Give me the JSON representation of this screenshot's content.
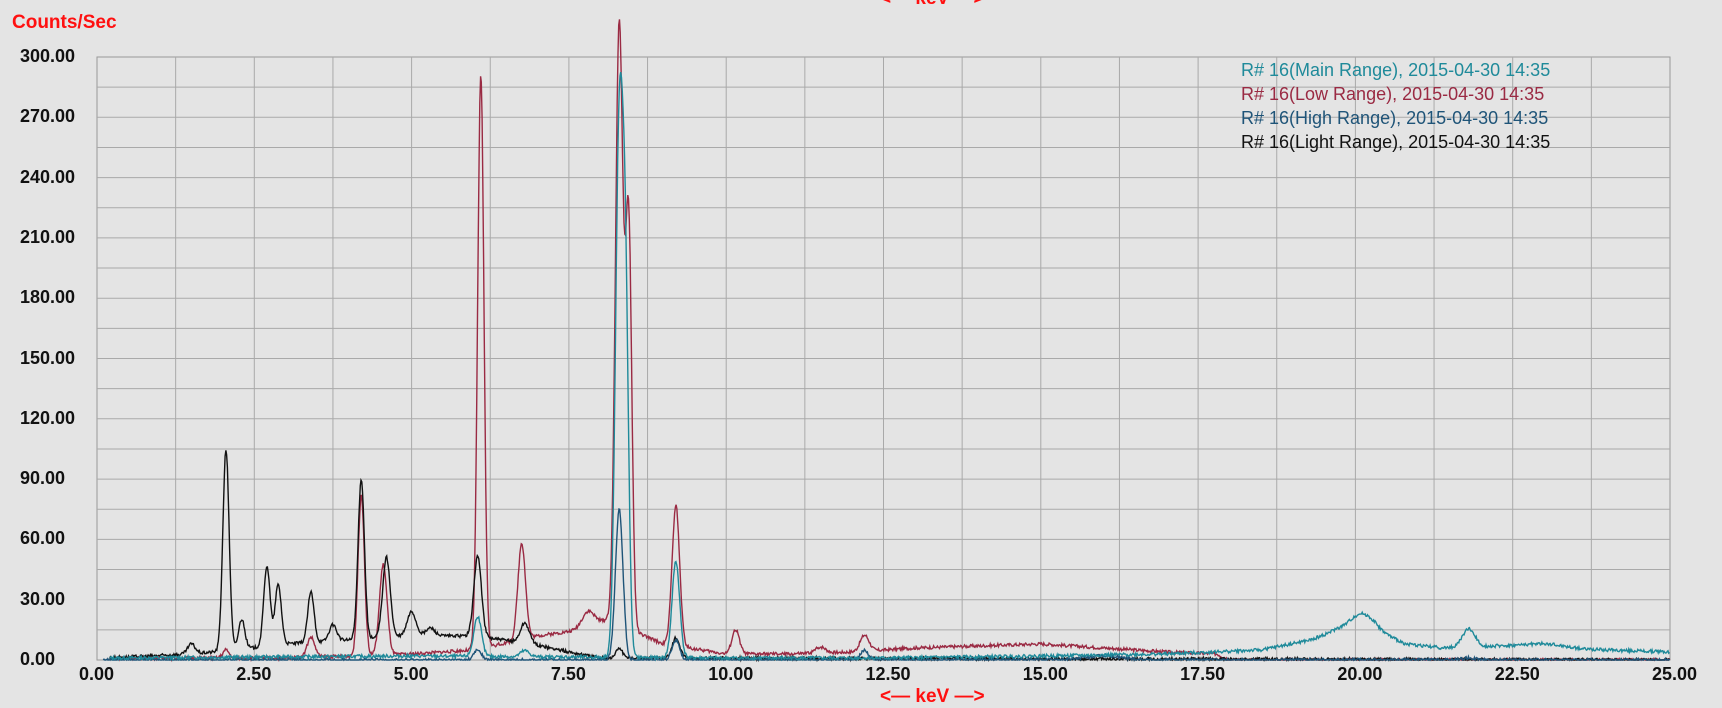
{
  "chart_data": {
    "type": "line",
    "title": "",
    "ylabel": "Counts/Sec",
    "xlabel": "<— keV —>",
    "xlim": [
      0,
      25
    ],
    "ylim": [
      0,
      300
    ],
    "x_ticks": [
      "0.00",
      "2.50",
      "5.00",
      "7.50",
      "10.00",
      "12.50",
      "15.00",
      "17.50",
      "20.00",
      "22.50",
      "25.00"
    ],
    "y_ticks": [
      "0.00",
      "30.00",
      "60.00",
      "90.00",
      "120.00",
      "150.00",
      "180.00",
      "210.00",
      "240.00",
      "270.00",
      "300.00"
    ],
    "grid": true,
    "legend_position": "top-right",
    "series": [
      {
        "name": "R# 16(Main Range), 2015-04-30 14:35",
        "color": "#1f8a9a",
        "baseline": [
          [
            0.2,
            1
          ],
          [
            5,
            2
          ],
          [
            10,
            1
          ],
          [
            12.5,
            1
          ],
          [
            15,
            2
          ],
          [
            17,
            3
          ],
          [
            18.5,
            5
          ],
          [
            19.3,
            10
          ],
          [
            19.7,
            15
          ],
          [
            20.3,
            15
          ],
          [
            20.8,
            8
          ],
          [
            21.4,
            6
          ],
          [
            22.3,
            7
          ],
          [
            23,
            6
          ],
          [
            25,
            4
          ]
        ],
        "peaks": [
          [
            6.05,
            20,
            0.06
          ],
          [
            6.8,
            3,
            0.07
          ],
          [
            8.3,
            260,
            0.06
          ],
          [
            8.4,
            160,
            0.05
          ],
          [
            9.2,
            48,
            0.06
          ],
          [
            20.1,
            8,
            0.18
          ],
          [
            21.8,
            9,
            0.1
          ],
          [
            23,
            2,
            0.3
          ]
        ]
      },
      {
        "name": "R# 16(Low Range), 2015-04-30 14:35",
        "color": "#9a2a43",
        "baseline": [
          [
            0.3,
            1
          ],
          [
            3,
            1
          ],
          [
            5,
            3
          ],
          [
            6,
            5
          ],
          [
            7,
            12
          ],
          [
            7.7,
            15
          ],
          [
            8.1,
            20
          ],
          [
            9,
            8
          ],
          [
            10,
            3
          ],
          [
            11,
            3
          ],
          [
            12,
            4
          ],
          [
            13,
            6
          ],
          [
            14,
            7
          ],
          [
            15,
            8
          ],
          [
            16,
            6
          ],
          [
            17,
            4
          ],
          [
            17.8,
            3
          ],
          [
            18,
            0
          ],
          [
            25,
            0
          ]
        ],
        "peaks": [
          [
            2.05,
            4,
            0.05
          ],
          [
            3.4,
            10,
            0.06
          ],
          [
            4.2,
            80,
            0.05
          ],
          [
            4.55,
            45,
            0.06
          ],
          [
            6.1,
            285,
            0.05
          ],
          [
            6.75,
            48,
            0.06
          ],
          [
            7.8,
            8,
            0.1
          ],
          [
            8.3,
            300,
            0.06
          ],
          [
            8.45,
            200,
            0.05
          ],
          [
            9.2,
            70,
            0.06
          ],
          [
            10.15,
            12,
            0.06
          ],
          [
            11.5,
            3,
            0.08
          ],
          [
            12.2,
            8,
            0.07
          ]
        ]
      },
      {
        "name": "R# 16(High Range), 2015-04-30 14:35",
        "color": "#1f5478",
        "baseline": [
          [
            0.1,
            0
          ],
          [
            25,
            0
          ]
        ],
        "peaks": [
          [
            6.05,
            5,
            0.06
          ],
          [
            8.3,
            75,
            0.06
          ],
          [
            9.2,
            10,
            0.06
          ],
          [
            12.2,
            5,
            0.06
          ],
          [
            16,
            2,
            0.3
          ],
          [
            21.8,
            1,
            0.1
          ]
        ]
      },
      {
        "name": "R# 16(Light Range), 2015-04-30 14:35",
        "color": "#111111",
        "baseline": [
          [
            0.2,
            1
          ],
          [
            1.5,
            3
          ],
          [
            2.2,
            5
          ],
          [
            3,
            8
          ],
          [
            4,
            10
          ],
          [
            5,
            12
          ],
          [
            6,
            12
          ],
          [
            6.9,
            8
          ],
          [
            7.5,
            4
          ],
          [
            8,
            1
          ],
          [
            25,
            0
          ]
        ],
        "peaks": [
          [
            1.5,
            5,
            0.06
          ],
          [
            2.05,
            100,
            0.05
          ],
          [
            2.3,
            15,
            0.05
          ],
          [
            2.7,
            40,
            0.05
          ],
          [
            2.88,
            30,
            0.05
          ],
          [
            3.4,
            25,
            0.05
          ],
          [
            3.75,
            8,
            0.06
          ],
          [
            4.2,
            80,
            0.05
          ],
          [
            4.6,
            40,
            0.06
          ],
          [
            5,
            12,
            0.07
          ],
          [
            5.3,
            4,
            0.07
          ],
          [
            6.05,
            40,
            0.06
          ],
          [
            6.8,
            10,
            0.07
          ],
          [
            8.3,
            5,
            0.05
          ],
          [
            9.2,
            10,
            0.06
          ]
        ]
      }
    ]
  }
}
